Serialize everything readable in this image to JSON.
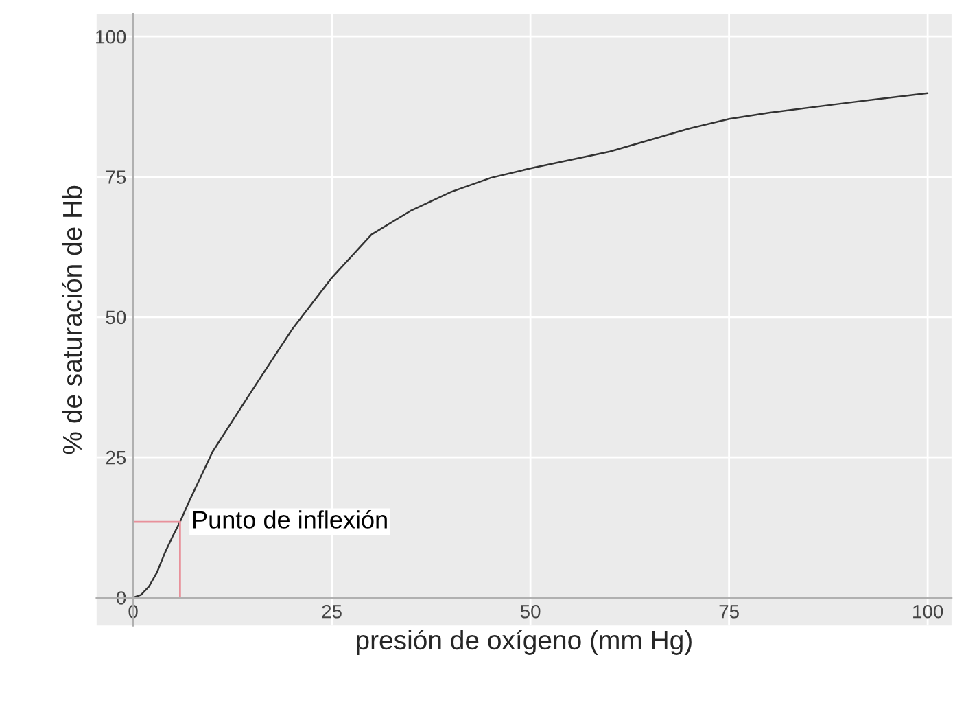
{
  "chart_data": {
    "type": "line",
    "xlabel": "presión de oxígeno (mm Hg)",
    "ylabel": "% de saturación de Hb",
    "x": [
      0,
      1,
      2,
      3,
      4,
      5,
      5.9,
      7,
      10,
      15,
      20,
      25,
      30,
      35,
      40,
      45,
      50,
      60,
      70,
      75,
      80,
      90,
      100
    ],
    "series": [
      {
        "color": "#333333",
        "values": [
          0,
          0.5,
          2,
          4.5,
          8,
          11,
          13.5,
          17,
          26,
          37,
          47.8,
          57,
          64.7,
          69,
          72.3,
          74.8,
          76.5,
          79.5,
          83.6,
          85.3,
          86.4,
          88.2,
          89.9
        ]
      }
    ],
    "annotations": [
      {
        "text": "Punto de inflexión",
        "x": 5.9,
        "y": 13.5
      }
    ],
    "xlim": [
      -4.6,
      103
    ],
    "ylim": [
      -5,
      104
    ],
    "xticks": [
      0,
      25,
      50,
      75,
      100
    ],
    "yticks": [
      0,
      25,
      50,
      75,
      100
    ],
    "grid": true,
    "legend": false,
    "marker": "none",
    "line_style": "solid"
  }
}
